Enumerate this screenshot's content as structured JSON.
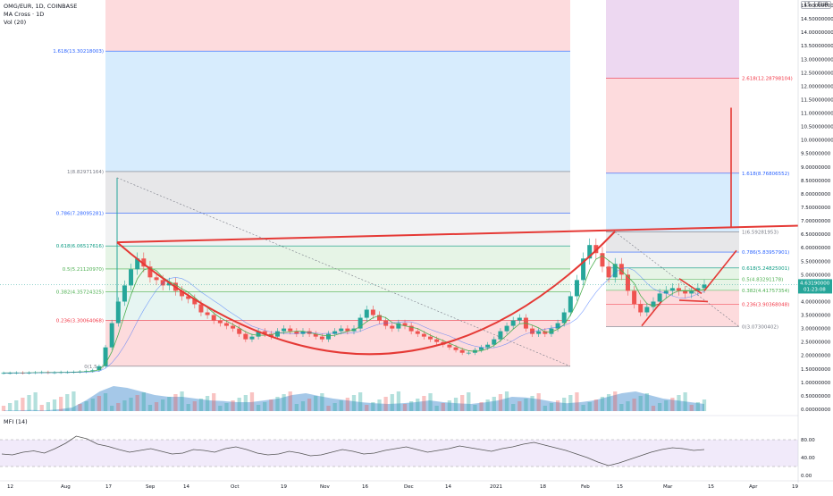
{
  "header": {
    "symbol_line": "OMG/EUR, 1D, COINBASE",
    "indicator1": "MA Cross · 1D",
    "indicator2": "Vol (20)",
    "mfi_label": "MFI (14)"
  },
  "corner": {
    "label": "15. | EUR"
  },
  "price_axis": {
    "ticks": [
      "15.00000000",
      "14.50000000",
      "14.00000000",
      "13.50000000",
      "13.00000000",
      "12.50000000",
      "12.00000000",
      "11.50000000",
      "11.00000000",
      "10.50000000",
      "10.00000000",
      "9.50000000",
      "9.00000000",
      "8.50000000",
      "8.00000000",
      "7.50000000",
      "7.00000000",
      "6.50000000",
      "6.00000000",
      "5.50000000",
      "5.00000000",
      "4.50000000",
      "4.00000000",
      "3.50000000",
      "3.00000000",
      "2.50000000",
      "2.00000000",
      "1.50000000",
      "1.00000000",
      "0.50000000",
      "0.00000000"
    ],
    "current_price": "4.63190000",
    "countdown": "01:23:08",
    "accent": "#26a69a"
  },
  "mfi_axis": {
    "ticks": [
      "80.00",
      "40.00",
      "0.00"
    ]
  },
  "time_axis": {
    "ticks": [
      "12",
      "Aug",
      "17",
      "Sep",
      "14",
      "Oct",
      "19",
      "Nov",
      "16",
      "Dec",
      "14",
      "2021",
      "18",
      "Feb",
      "15",
      "Mar",
      "15",
      "Apr",
      "19"
    ]
  },
  "fib_left": [
    {
      "label": "1.618(13.30218003)",
      "color": "#2962ff"
    },
    {
      "label": "1(8.82971164)",
      "color": "#787b86"
    },
    {
      "label": "0.786(7.28095281)",
      "color": "#2962ff"
    },
    {
      "label": "0.618(6.06517616)",
      "color": "#089981"
    },
    {
      "label": "0.5(5.21120970)",
      "color": "#4caf50"
    },
    {
      "label": "0.382(4.35724325)",
      "color": "#4caf50"
    },
    {
      "label": "0.236(3.30064068)",
      "color": "#f23645"
    },
    {
      "label": "0(1.5...)",
      "color": "#787b86"
    }
  ],
  "fib_right": [
    {
      "label": "2.618(12.28798104)",
      "color": "#f23645"
    },
    {
      "label": "1.618(8.76806552)",
      "color": "#2962ff"
    },
    {
      "label": "1(6.59281953)",
      "color": "#787b86"
    },
    {
      "label": "0.786(5.83957901)",
      "color": "#2962ff"
    },
    {
      "label": "0.618(5.24825001)",
      "color": "#089981"
    },
    {
      "label": "0.5(4.83291178)",
      "color": "#4caf50"
    },
    {
      "label": "0.382(4.41757354)",
      "color": "#4caf50"
    },
    {
      "label": "0.236(3.90368048)",
      "color": "#f23645"
    },
    {
      "label": "0(3.07300402)",
      "color": "#787b86"
    }
  ],
  "colors": {
    "up": "#26a69a",
    "down": "#ef5350",
    "drawing": "#e53935",
    "ma_fast": "#4caf50",
    "ma_slow": "#2962ff",
    "volume_area": "#5b9bd5",
    "mfi_band": "#e8dcf7",
    "mfi_line": "#555555"
  },
  "chart_data": {
    "type": "candlestick",
    "symbol": "OMG/EUR",
    "interval": "1D",
    "exchange": "COINBASE",
    "y_range": [
      0,
      15
    ],
    "mfi_range": [
      0,
      100
    ],
    "last_price": 4.6319,
    "fib_left_levels": [
      {
        "ratio": 1.618,
        "price": 13.30218003
      },
      {
        "ratio": 1,
        "price": 8.82971164
      },
      {
        "ratio": 0.786,
        "price": 7.28095281
      },
      {
        "ratio": 0.618,
        "price": 6.06517616
      },
      {
        "ratio": 0.5,
        "price": 5.2112097
      },
      {
        "ratio": 0.382,
        "price": 4.35724325
      },
      {
        "ratio": 0.236,
        "price": 3.30064068
      },
      {
        "ratio": 0,
        "price": 1.6
      }
    ],
    "fib_right_levels": [
      {
        "ratio": 2.618,
        "price": 12.28798104
      },
      {
        "ratio": 1.618,
        "price": 8.76806552
      },
      {
        "ratio": 1,
        "price": 6.59281953
      },
      {
        "ratio": 0.786,
        "price": 5.83957901
      },
      {
        "ratio": 0.618,
        "price": 5.24825001
      },
      {
        "ratio": 0.5,
        "price": 4.83291178
      },
      {
        "ratio": 0.382,
        "price": 4.41757354
      },
      {
        "ratio": 0.236,
        "price": 3.90368048
      },
      {
        "ratio": 0,
        "price": 3.07300402
      }
    ],
    "close_series_approx": [
      1.35,
      1.35,
      1.36,
      1.35,
      1.36,
      1.37,
      1.38,
      1.36,
      1.37,
      1.38,
      1.38,
      1.39,
      1.4,
      1.42,
      1.45,
      1.6,
      2.3,
      3.2,
      4.0,
      4.6,
      5.2,
      5.6,
      5.3,
      4.9,
      4.8,
      4.6,
      4.7,
      4.4,
      4.2,
      4.1,
      3.9,
      3.6,
      3.5,
      3.3,
      3.2,
      3.1,
      3.0,
      2.8,
      2.6,
      2.7,
      2.9,
      2.8,
      2.7,
      2.9,
      3.0,
      2.9,
      2.8,
      2.9,
      2.8,
      2.7,
      2.6,
      2.8,
      2.9,
      3.0,
      2.9,
      3.0,
      3.4,
      3.7,
      3.5,
      3.3,
      3.1,
      3.0,
      3.2,
      3.1,
      2.9,
      2.8,
      2.7,
      2.6,
      2.5,
      2.4,
      2.3,
      2.2,
      2.1,
      2.1,
      2.2,
      2.3,
      2.4,
      2.6,
      2.9,
      3.1,
      3.3,
      3.4,
      3.0,
      2.8,
      2.9,
      2.8,
      3.0,
      3.2,
      3.6,
      4.2,
      4.8,
      5.6,
      6.1,
      5.8,
      5.3,
      4.9,
      5.4,
      5.0,
      4.4,
      3.9,
      3.6,
      3.8,
      4.0,
      4.3,
      4.4,
      4.5,
      4.4,
      4.3,
      4.4,
      4.5,
      4.63
    ],
    "mfi_series_approx": [
      48,
      46,
      52,
      55,
      50,
      60,
      72,
      88,
      82,
      70,
      65,
      58,
      52,
      56,
      60,
      54,
      48,
      50,
      58,
      56,
      52,
      60,
      64,
      58,
      50,
      46,
      48,
      54,
      50,
      44,
      46,
      52,
      58,
      54,
      48,
      50,
      56,
      60,
      64,
      58,
      52,
      56,
      60,
      66,
      62,
      58,
      54,
      60,
      64,
      70,
      74,
      68,
      62,
      56,
      48,
      40,
      30,
      22,
      28,
      36,
      44,
      52,
      58,
      62,
      60,
      56,
      58
    ]
  }
}
